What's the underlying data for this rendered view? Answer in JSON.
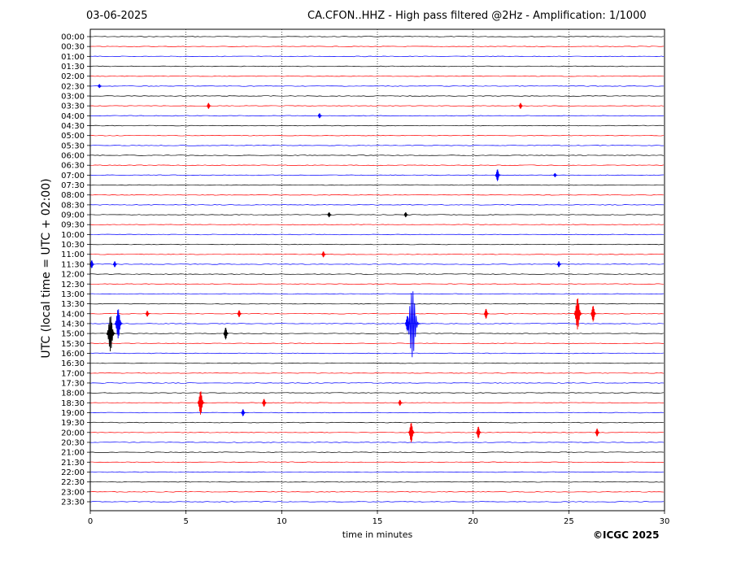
{
  "header": {
    "date": "03-06-2025",
    "title": "CA.CFON..HHZ - High pass filtered @2Hz - Amplification: 1/1000"
  },
  "footer": {
    "copyright": "©ICGC 2025"
  },
  "chart_data": {
    "type": "line",
    "title": "CA.CFON..HHZ - High pass filtered @2Hz - Amplification: 1/1000",
    "xlabel": "time in minutes",
    "ylabel": "UTC (local time = UTC + 02:00)",
    "xlim": [
      0,
      30
    ],
    "x_ticks": [
      0,
      5,
      10,
      15,
      20,
      25,
      30
    ],
    "vertical_grid": "dotted at 5, 10, 15, 20, 25",
    "y_ticks": [
      "00:00",
      "00:30",
      "01:00",
      "01:30",
      "02:00",
      "02:30",
      "03:00",
      "03:30",
      "04:00",
      "04:30",
      "05:00",
      "05:30",
      "06:00",
      "06:30",
      "07:00",
      "07:30",
      "08:00",
      "08:30",
      "09:00",
      "09:30",
      "10:00",
      "10:30",
      "11:00",
      "11:30",
      "12:00",
      "12:30",
      "13:00",
      "13:30",
      "14:00",
      "14:30",
      "15:00",
      "15:30",
      "16:00",
      "16:30",
      "17:00",
      "17:30",
      "18:00",
      "18:30",
      "19:00",
      "19:30",
      "20:00",
      "20:30",
      "21:00",
      "21:30",
      "22:00",
      "22:30",
      "23:00",
      "23:30"
    ],
    "trace_colors": [
      "#000000",
      "#ff0000",
      "#0000ff"
    ],
    "events": [
      {
        "row": "02:30",
        "minute": 0.5,
        "amplitude": 0.2
      },
      {
        "row": "03:30",
        "minute": 6.2,
        "amplitude": 0.3
      },
      {
        "row": "03:30",
        "minute": 22.5,
        "amplitude": 0.3
      },
      {
        "row": "04:00",
        "minute": 12.0,
        "amplitude": 0.25
      },
      {
        "row": "07:00",
        "minute": 21.3,
        "amplitude": 0.6
      },
      {
        "row": "07:00",
        "minute": 24.3,
        "amplitude": 0.2
      },
      {
        "row": "09:00",
        "minute": 12.5,
        "amplitude": 0.25
      },
      {
        "row": "09:00",
        "minute": 16.5,
        "amplitude": 0.25
      },
      {
        "row": "11:00",
        "minute": 12.2,
        "amplitude": 0.3
      },
      {
        "row": "11:30",
        "minute": 0.1,
        "amplitude": 0.4
      },
      {
        "row": "11:30",
        "minute": 1.3,
        "amplitude": 0.3
      },
      {
        "row": "11:30",
        "minute": 24.5,
        "amplitude": 0.3
      },
      {
        "row": "14:00",
        "minute": 3.0,
        "amplitude": 0.3
      },
      {
        "row": "14:00",
        "minute": 7.8,
        "amplitude": 0.35
      },
      {
        "row": "14:00",
        "minute": 20.7,
        "amplitude": 0.5
      },
      {
        "row": "14:00",
        "minute": 25.5,
        "amplitude": 1.6
      },
      {
        "row": "14:00",
        "minute": 26.3,
        "amplitude": 0.8
      },
      {
        "row": "14:30",
        "minute": 1.5,
        "amplitude": 1.5
      },
      {
        "row": "14:30",
        "minute": 16.6,
        "amplitude": 0.8
      },
      {
        "row": "14:30",
        "minute": 16.9,
        "amplitude": 3.4
      },
      {
        "row": "15:00",
        "minute": 1.1,
        "amplitude": 1.8
      },
      {
        "row": "15:00",
        "minute": 7.1,
        "amplitude": 0.6
      },
      {
        "row": "18:30",
        "minute": 5.8,
        "amplitude": 1.2
      },
      {
        "row": "18:30",
        "minute": 9.1,
        "amplitude": 0.4
      },
      {
        "row": "18:30",
        "minute": 16.2,
        "amplitude": 0.3
      },
      {
        "row": "19:00",
        "minute": 8.0,
        "amplitude": 0.35
      },
      {
        "row": "20:00",
        "minute": 16.8,
        "amplitude": 1.0
      },
      {
        "row": "20:00",
        "minute": 20.3,
        "amplitude": 0.6
      },
      {
        "row": "20:00",
        "minute": 26.5,
        "amplitude": 0.4
      }
    ]
  }
}
